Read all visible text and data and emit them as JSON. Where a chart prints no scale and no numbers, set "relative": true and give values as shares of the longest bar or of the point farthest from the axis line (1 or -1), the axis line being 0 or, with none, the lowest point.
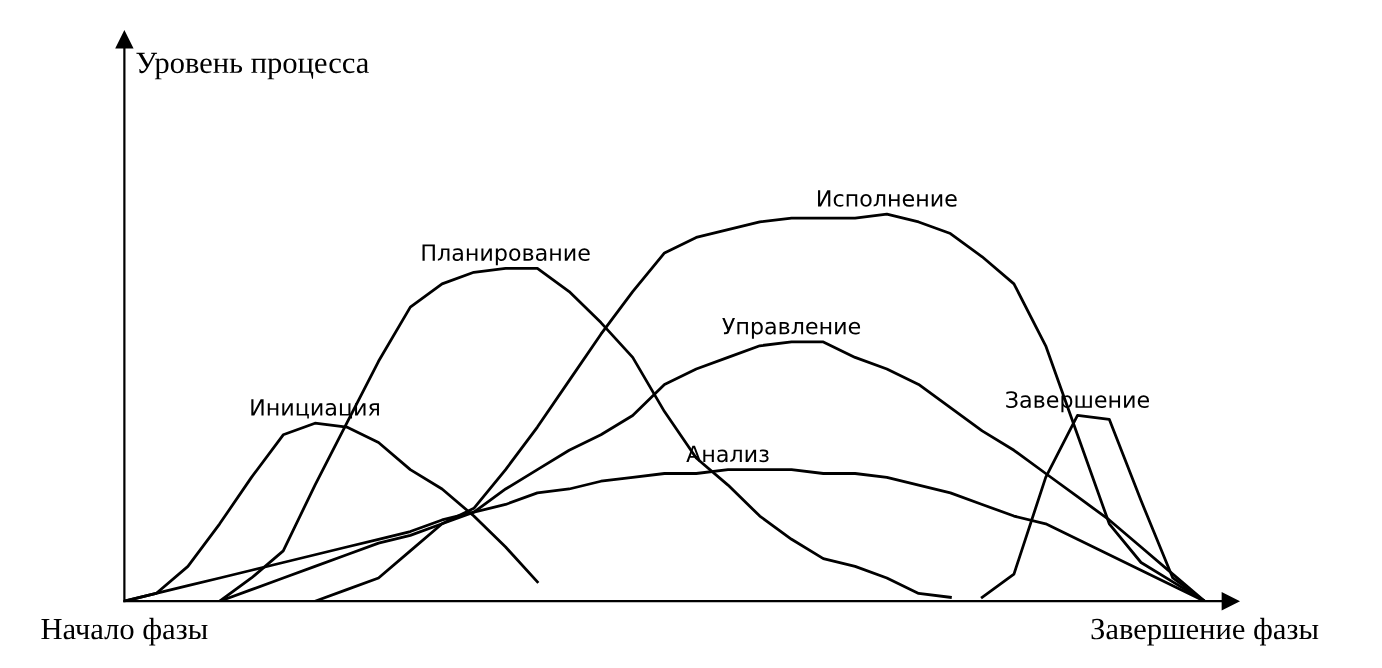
{
  "chart_data": {
    "type": "line",
    "relative": true,
    "ylabel": "Уровень процесса",
    "marker": "none",
    "line_style": "solid",
    "grid": false,
    "legend": false,
    "categories": [
      "Начало фазы",
      null,
      null,
      null,
      null,
      null,
      null,
      null,
      null,
      null,
      null,
      null,
      null,
      null,
      null,
      null,
      null,
      null,
      null,
      null,
      null,
      null,
      null,
      null,
      null,
      null,
      null,
      null,
      null,
      null,
      null,
      null,
      null,
      null,
      "Завершение фазы"
    ],
    "series": [
      {
        "name": "Инициация",
        "color": "#000000",
        "values": [
          0,
          0.02,
          0.09,
          0.2,
          0.32,
          0.43,
          0.46,
          0.45,
          0.41,
          0.34,
          0.29,
          0.22,
          0.14,
          0.05,
          null,
          null,
          null,
          null,
          null,
          null,
          null,
          null,
          null,
          null,
          null,
          null,
          null,
          null,
          null,
          null,
          null,
          null,
          null,
          null,
          null
        ]
      },
      {
        "name": "Планирование",
        "color": "#000000",
        "values": [
          null,
          null,
          null,
          0,
          0.06,
          0.13,
          0.3,
          0.46,
          0.62,
          0.76,
          0.82,
          0.85,
          0.86,
          0.86,
          0.8,
          0.72,
          0.63,
          0.49,
          0.37,
          0.3,
          0.22,
          0.16,
          0.11,
          0.09,
          0.06,
          0.02,
          0.01,
          null,
          null,
          null,
          null,
          null,
          null,
          null,
          null
        ]
      },
      {
        "name": "Исполнение",
        "color": "#000000",
        "values": [
          null,
          null,
          null,
          null,
          null,
          null,
          0,
          0.03,
          0.06,
          0.13,
          0.2,
          0.24,
          0.34,
          0.45,
          0.57,
          0.69,
          0.8,
          0.9,
          0.94,
          0.96,
          0.98,
          0.99,
          0.99,
          0.99,
          1.0,
          0.98,
          0.95,
          0.89,
          0.82,
          0.66,
          0.43,
          0.2,
          0.1,
          0.05,
          0
        ]
      },
      {
        "name": "Управление",
        "color": "#000000",
        "values": [
          null,
          null,
          null,
          0,
          0.03,
          0.06,
          0.09,
          0.12,
          0.15,
          0.17,
          0.2,
          0.23,
          0.29,
          0.34,
          0.39,
          0.43,
          0.48,
          0.56,
          0.6,
          0.63,
          0.66,
          0.67,
          0.67,
          0.63,
          0.6,
          0.56,
          0.5,
          0.44,
          0.39,
          0.33,
          0.27,
          0.21,
          0.14,
          0.07,
          0
        ]
      },
      {
        "name": "Анализ",
        "color": "#000000",
        "values": [
          0,
          0.02,
          0.04,
          0.06,
          0.08,
          0.1,
          0.12,
          0.14,
          0.16,
          0.18,
          0.21,
          0.23,
          0.25,
          0.28,
          0.29,
          0.31,
          0.32,
          0.33,
          0.33,
          0.34,
          0.34,
          0.34,
          0.33,
          0.33,
          0.32,
          0.3,
          0.28,
          0.25,
          0.22,
          0.2,
          0.16,
          0.12,
          0.08,
          0.04,
          0
        ]
      },
      {
        "name": "Завершение",
        "color": "#000000",
        "values": [
          null,
          null,
          null,
          null,
          null,
          null,
          null,
          null,
          null,
          null,
          null,
          null,
          null,
          null,
          null,
          null,
          null,
          null,
          null,
          null,
          null,
          null,
          null,
          null,
          null,
          null,
          null,
          0.01,
          0.07,
          0.32,
          0.48,
          0.47,
          0.26,
          0.06,
          0
        ]
      }
    ]
  }
}
